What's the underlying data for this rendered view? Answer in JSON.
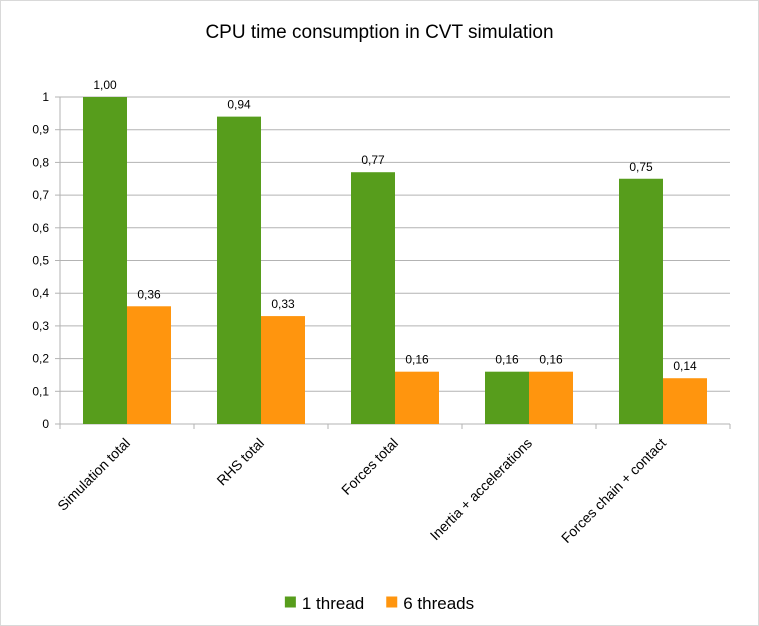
{
  "chart_data": {
    "type": "bar",
    "title": "CPU time consumption in CVT simulation",
    "xlabel": "",
    "ylabel": "",
    "categories": [
      "Simulation total",
      "RHS total",
      "Forces total",
      "Inertia + accelerations",
      "Forces chain + contact"
    ],
    "series": [
      {
        "name": "1 thread",
        "color": "#579d1c",
        "values": [
          1.0,
          0.94,
          0.77,
          0.16,
          0.75
        ],
        "labels": [
          "1,00",
          "0,94",
          "0,77",
          "0,16",
          "0,75"
        ]
      },
      {
        "name": "6 threads",
        "color": "#ff950e",
        "values": [
          0.36,
          0.33,
          0.16,
          0.16,
          0.14
        ],
        "labels": [
          "0,36",
          "0,33",
          "0,16",
          "0,16",
          "0,14"
        ]
      }
    ],
    "ylim": [
      0,
      1
    ],
    "yticks": [
      0,
      0.1,
      0.2,
      0.3,
      0.4,
      0.5,
      0.6,
      0.7,
      0.8,
      0.9,
      1
    ],
    "ytick_labels": [
      "0",
      "0,1",
      "0,2",
      "0,3",
      "0,4",
      "0,5",
      "0,6",
      "0,7",
      "0,8",
      "0,9",
      "1"
    ],
    "grid": true,
    "legend_position": "bottom"
  }
}
